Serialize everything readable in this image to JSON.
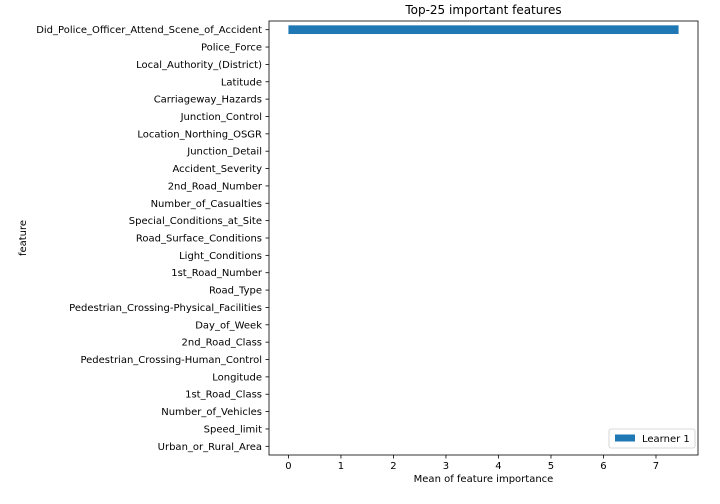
{
  "chart_data": {
    "type": "bar",
    "orientation": "horizontal",
    "title": "Top-25 important features",
    "xlabel": "Mean of feature importance",
    "ylabel": "feature",
    "xlim": [
      -0.37,
      7.8
    ],
    "xticks": [
      0,
      1,
      2,
      3,
      4,
      5,
      6,
      7
    ],
    "grid": false,
    "legend_position": "lower-right",
    "categories": [
      "Did_Police_Officer_Attend_Scene_of_Accident",
      "Police_Force",
      "Local_Authority_(District)",
      "Latitude",
      "Carriageway_Hazards",
      "Junction_Control",
      "Location_Northing_OSGR",
      "Junction_Detail",
      "Accident_Severity",
      "2nd_Road_Number",
      "Number_of_Casualties",
      "Special_Conditions_at_Site",
      "Road_Surface_Conditions",
      "Light_Conditions",
      "1st_Road_Number",
      "Road_Type",
      "Pedestrian_Crossing-Physical_Facilities",
      "Day_of_Week",
      "2nd_Road_Class",
      "Pedestrian_Crossing-Human_Control",
      "Longitude",
      "1st_Road_Class",
      "Number_of_Vehicles",
      "Speed_limit",
      "Urban_or_Rural_Area"
    ],
    "series": [
      {
        "name": "Learner 1",
        "color": "#1f77b4",
        "values": [
          7.43,
          0,
          0,
          0,
          0,
          0,
          0,
          0,
          0,
          0,
          0,
          0,
          0,
          0,
          0,
          0,
          0,
          0,
          0,
          0,
          0,
          0,
          0,
          0,
          0
        ]
      }
    ]
  }
}
